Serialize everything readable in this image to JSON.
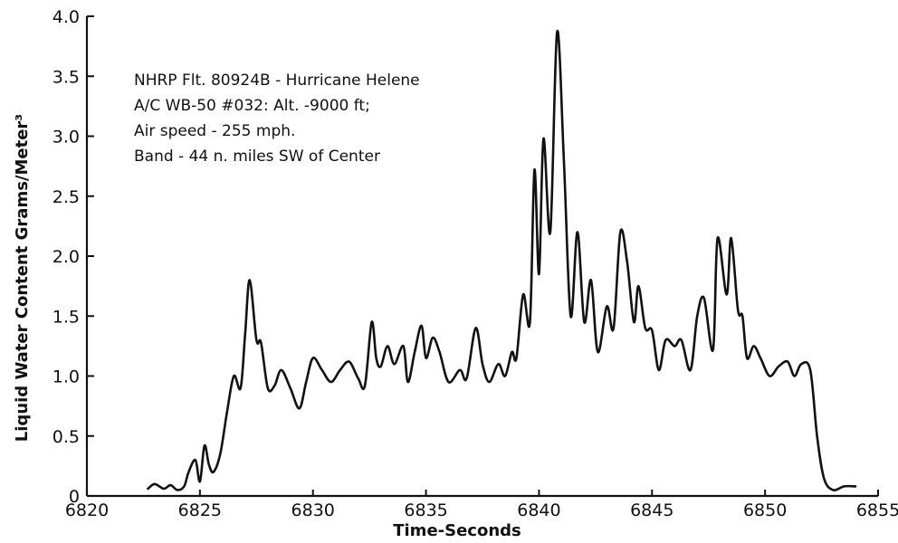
{
  "chart_data": {
    "type": "line",
    "xlabel": "Time-Seconds",
    "ylabel": "Liquid Water Content  Grams/Meter³",
    "xlim": [
      6820,
      6855
    ],
    "ylim": [
      0,
      4.0
    ],
    "x_ticks": [
      6820,
      6825,
      6830,
      6835,
      6840,
      6845,
      6850,
      6855
    ],
    "x_tick_labels": [
      "6820",
      "6825",
      "6830",
      "6835",
      "6840",
      "6845",
      "6850",
      "6855"
    ],
    "y_ticks": [
      0,
      0.5,
      1.0,
      1.5,
      2.0,
      2.5,
      3.0,
      3.5,
      4.0
    ],
    "y_tick_labels": [
      "0",
      "0.5",
      "1.0",
      "1.5",
      "2.0",
      "2.5",
      "3.0",
      "3.5",
      "4.0"
    ],
    "grid": false,
    "annotation_lines": [
      "NHRP Flt. 80924B - Hurricane Helene",
      "A/C WB-50 #032: Alt. -9000 ft;",
      "Air speed - 255 mph.",
      "Band - 44 n. miles SW of Center"
    ],
    "series": [
      {
        "color": "#111111",
        "points": [
          [
            6822.7,
            0.06
          ],
          [
            6823.0,
            0.1
          ],
          [
            6823.4,
            0.06
          ],
          [
            6823.7,
            0.09
          ],
          [
            6824.0,
            0.05
          ],
          [
            6824.3,
            0.08
          ],
          [
            6824.5,
            0.2
          ],
          [
            6824.8,
            0.3
          ],
          [
            6825.0,
            0.12
          ],
          [
            6825.2,
            0.42
          ],
          [
            6825.4,
            0.26
          ],
          [
            6825.6,
            0.2
          ],
          [
            6825.9,
            0.35
          ],
          [
            6826.2,
            0.7
          ],
          [
            6826.5,
            1.0
          ],
          [
            6826.8,
            0.9
          ],
          [
            6827.0,
            1.35
          ],
          [
            6827.2,
            1.8
          ],
          [
            6827.5,
            1.3
          ],
          [
            6827.7,
            1.28
          ],
          [
            6828.0,
            0.9
          ],
          [
            6828.3,
            0.92
          ],
          [
            6828.6,
            1.05
          ],
          [
            6829.0,
            0.9
          ],
          [
            6829.4,
            0.73
          ],
          [
            6829.7,
            0.95
          ],
          [
            6830.0,
            1.15
          ],
          [
            6830.4,
            1.05
          ],
          [
            6830.8,
            0.95
          ],
          [
            6831.2,
            1.05
          ],
          [
            6831.6,
            1.12
          ],
          [
            6832.0,
            0.98
          ],
          [
            6832.3,
            0.92
          ],
          [
            6832.6,
            1.45
          ],
          [
            6832.8,
            1.15
          ],
          [
            6833.0,
            1.08
          ],
          [
            6833.3,
            1.25
          ],
          [
            6833.6,
            1.1
          ],
          [
            6834.0,
            1.25
          ],
          [
            6834.2,
            0.95
          ],
          [
            6834.5,
            1.2
          ],
          [
            6834.8,
            1.42
          ],
          [
            6835.0,
            1.15
          ],
          [
            6835.3,
            1.32
          ],
          [
            6835.6,
            1.2
          ],
          [
            6836.0,
            0.95
          ],
          [
            6836.5,
            1.05
          ],
          [
            6836.8,
            0.98
          ],
          [
            6837.2,
            1.4
          ],
          [
            6837.5,
            1.1
          ],
          [
            6837.8,
            0.95
          ],
          [
            6838.2,
            1.1
          ],
          [
            6838.5,
            1.0
          ],
          [
            6838.8,
            1.2
          ],
          [
            6839.0,
            1.15
          ],
          [
            6839.3,
            1.68
          ],
          [
            6839.6,
            1.45
          ],
          [
            6839.8,
            2.72
          ],
          [
            6840.0,
            1.85
          ],
          [
            6840.2,
            2.98
          ],
          [
            6840.5,
            2.2
          ],
          [
            6840.8,
            3.87
          ],
          [
            6841.1,
            2.8
          ],
          [
            6841.4,
            1.5
          ],
          [
            6841.7,
            2.2
          ],
          [
            6842.0,
            1.45
          ],
          [
            6842.3,
            1.8
          ],
          [
            6842.6,
            1.2
          ],
          [
            6843.0,
            1.58
          ],
          [
            6843.3,
            1.4
          ],
          [
            6843.6,
            2.2
          ],
          [
            6843.9,
            1.95
          ],
          [
            6844.2,
            1.45
          ],
          [
            6844.4,
            1.75
          ],
          [
            6844.7,
            1.4
          ],
          [
            6845.0,
            1.38
          ],
          [
            6845.3,
            1.05
          ],
          [
            6845.6,
            1.3
          ],
          [
            6846.0,
            1.25
          ],
          [
            6846.3,
            1.3
          ],
          [
            6846.7,
            1.05
          ],
          [
            6847.0,
            1.5
          ],
          [
            6847.3,
            1.65
          ],
          [
            6847.7,
            1.22
          ],
          [
            6847.9,
            2.15
          ],
          [
            6848.3,
            1.68
          ],
          [
            6848.5,
            2.15
          ],
          [
            6848.8,
            1.55
          ],
          [
            6849.0,
            1.5
          ],
          [
            6849.2,
            1.15
          ],
          [
            6849.5,
            1.25
          ],
          [
            6849.8,
            1.15
          ],
          [
            6850.2,
            1.0
          ],
          [
            6850.6,
            1.08
          ],
          [
            6851.0,
            1.12
          ],
          [
            6851.3,
            1.0
          ],
          [
            6851.6,
            1.1
          ],
          [
            6852.0,
            1.05
          ],
          [
            6852.3,
            0.5
          ],
          [
            6852.6,
            0.15
          ],
          [
            6853.0,
            0.05
          ],
          [
            6853.5,
            0.08
          ],
          [
            6854.0,
            0.08
          ]
        ]
      }
    ]
  }
}
